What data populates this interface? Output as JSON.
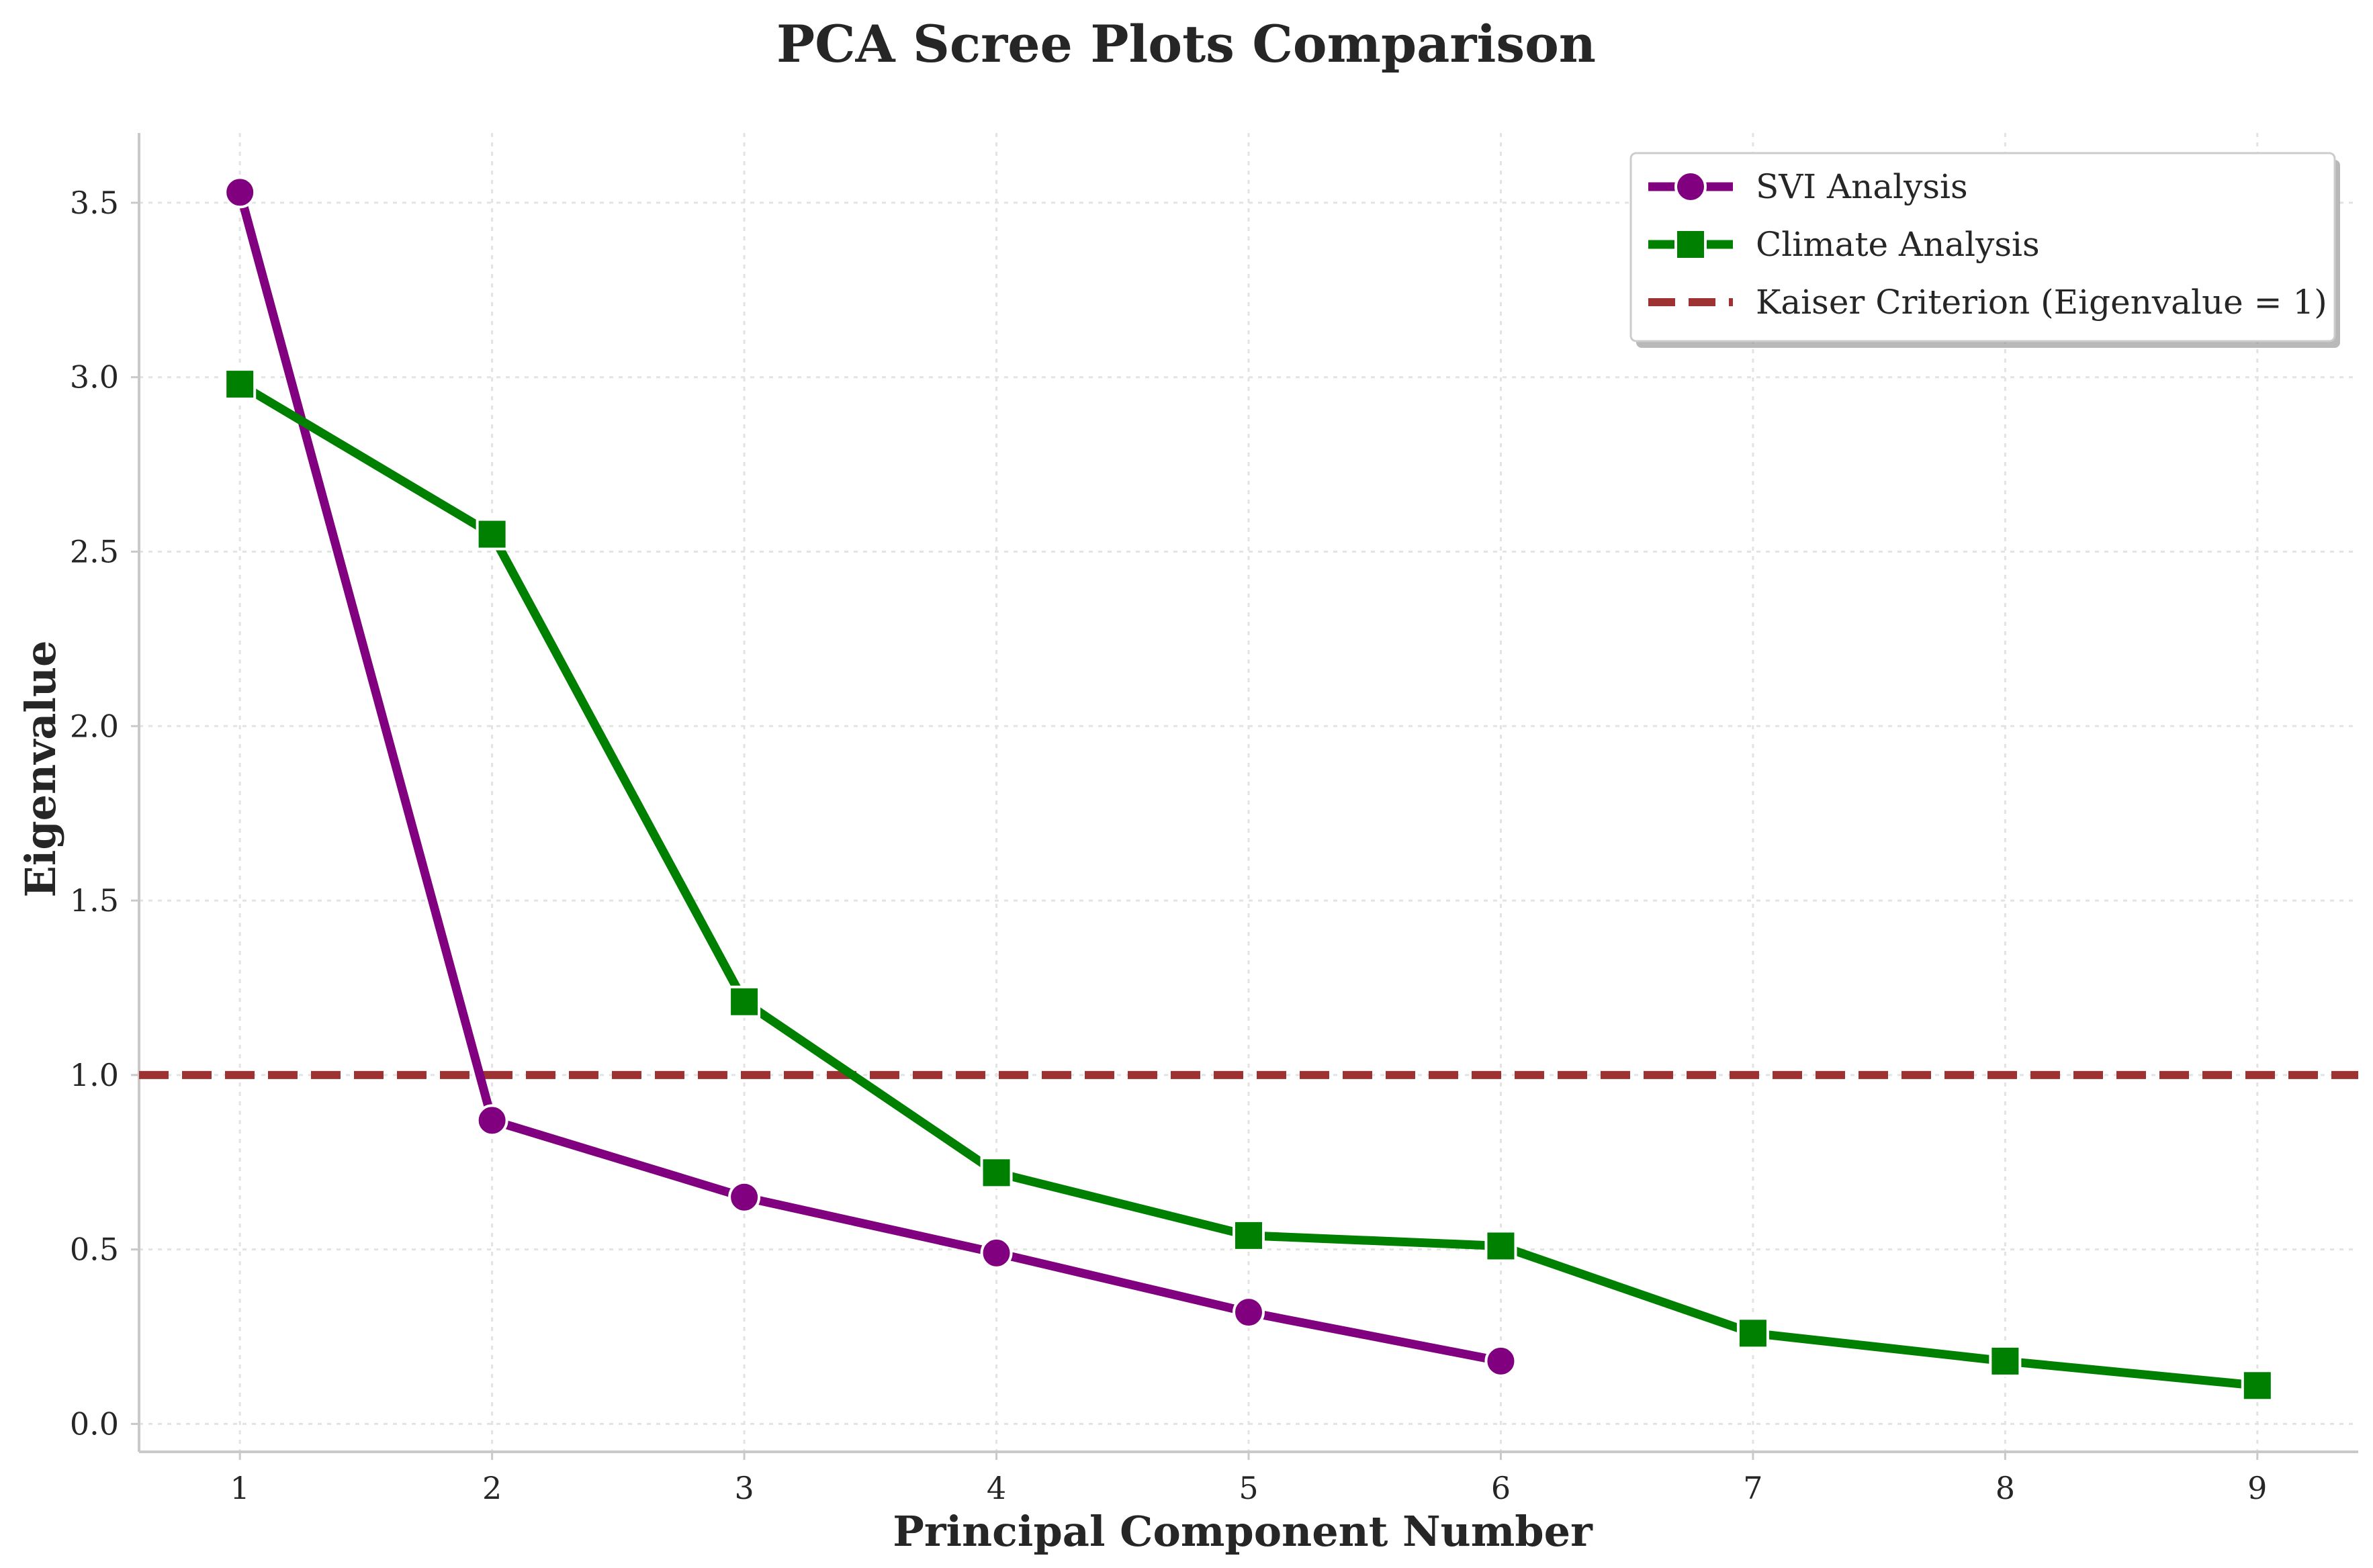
{
  "chart_data": {
    "type": "line",
    "title": "PCA Scree Plots Comparison",
    "xlabel": "Principal Component Number",
    "ylabel": "Eigenvalue",
    "xlim": [
      0.6,
      9.4
    ],
    "ylim": [
      -0.08,
      3.7
    ],
    "x_ticks": [
      1,
      2,
      3,
      4,
      5,
      6,
      7,
      8,
      9
    ],
    "x_tick_labels": [
      "1",
      "2",
      "3",
      "4",
      "5",
      "6",
      "7",
      "8",
      "9"
    ],
    "y_ticks": [
      0.0,
      0.5,
      1.0,
      1.5,
      2.0,
      2.5,
      3.0,
      3.5
    ],
    "y_tick_labels": [
      "0.0",
      "0.5",
      "1.0",
      "1.5",
      "2.0",
      "2.5",
      "3.0",
      "3.5"
    ],
    "grid": true,
    "legend_position": "top-right",
    "series": [
      {
        "name": "SVI Analysis",
        "color": "#800080",
        "marker": "circle",
        "x": [
          1,
          2,
          3,
          4,
          5,
          6
        ],
        "values": [
          3.53,
          0.87,
          0.65,
          0.49,
          0.32,
          0.18
        ]
      },
      {
        "name": "Climate Analysis",
        "color": "#008000",
        "marker": "square",
        "x": [
          1,
          2,
          3,
          4,
          5,
          6,
          7,
          8,
          9
        ],
        "values": [
          2.98,
          2.55,
          1.21,
          0.72,
          0.54,
          0.51,
          0.26,
          0.18,
          0.11
        ]
      }
    ],
    "reference_line": {
      "name": "Kaiser Criterion (Eigenvalue = 1)",
      "value": 1.0,
      "color": "#9e3232",
      "style": "dashed"
    }
  }
}
